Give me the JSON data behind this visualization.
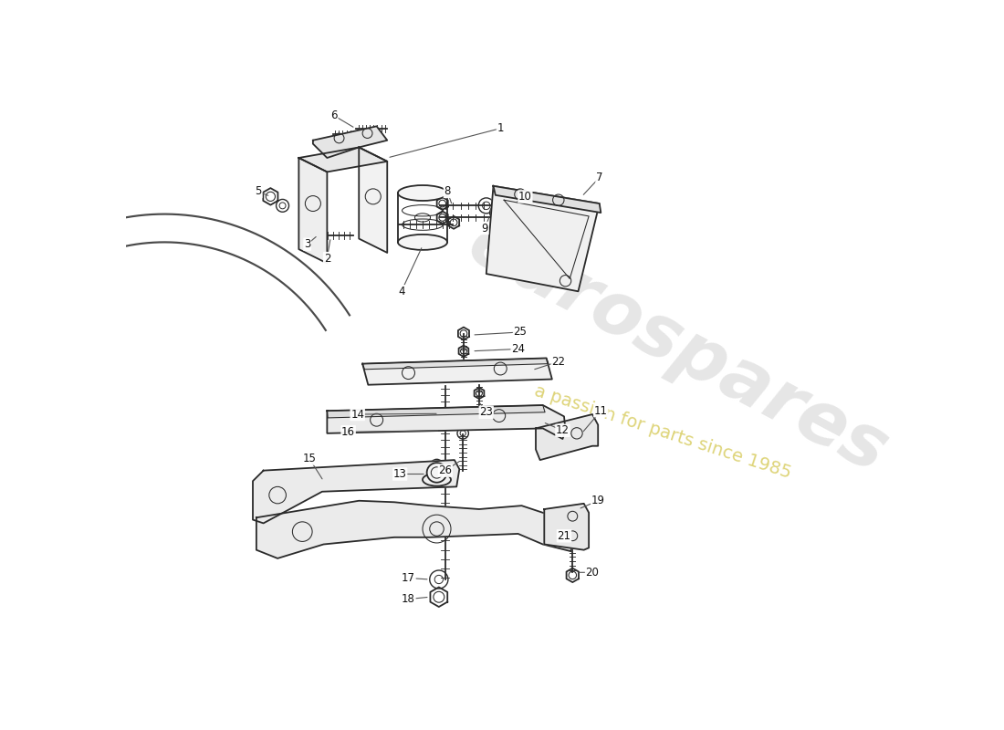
{
  "bg_color": "#ffffff",
  "line_color": "#2a2a2a",
  "label_color": "#111111",
  "figsize": [
    11.0,
    8.0
  ],
  "dpi": 100,
  "watermark1": "eurospares",
  "watermark2": "a passion for parts since 1985",
  "wm1_color": "#c8c8c8",
  "wm2_color": "#c8b820",
  "wm1_alpha": 0.45,
  "wm2_alpha": 0.6,
  "label_fs": 8.5
}
